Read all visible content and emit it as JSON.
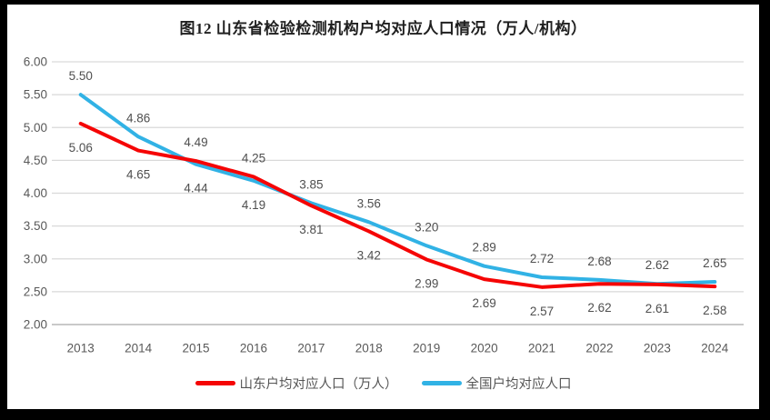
{
  "chart_data": {
    "type": "line",
    "title": "图12 山东省检验检测机构户均对应人口情况（万人/机构）",
    "categories": [
      "2013",
      "2014",
      "2015",
      "2016",
      "2017",
      "2018",
      "2019",
      "2020",
      "2021",
      "2022",
      "2023",
      "2024"
    ],
    "series": [
      {
        "name": "山东户均对应人口（万人）",
        "color": "#f50505",
        "values": [
          5.06,
          4.65,
          4.49,
          4.25,
          3.81,
          3.42,
          2.99,
          2.69,
          2.57,
          2.62,
          2.61,
          2.58
        ]
      },
      {
        "name": "全国户均对应人口",
        "color": "#31b2e5",
        "values": [
          5.5,
          4.86,
          4.44,
          4.19,
          3.85,
          3.56,
          3.2,
          2.89,
          2.72,
          2.68,
          2.62,
          2.65
        ]
      }
    ],
    "ylim": [
      2.0,
      6.0
    ],
    "ytick_step": 0.5,
    "ytick_labels": [
      "6.00",
      "5.50",
      "5.00",
      "4.50",
      "4.00",
      "3.50",
      "3.00",
      "2.50",
      "2.00"
    ],
    "grid": true,
    "data_labels": true,
    "legend_position": "bottom"
  },
  "styles": {
    "frame_color": "#000000",
    "background_color": "#ffffff",
    "title_color": "#1f1f1f",
    "grid_color": "#d9d9d9",
    "axis_line_color": "#b7b7b7",
    "axis_label_color": "#595959",
    "data_label_color": "#4f4f4f",
    "legend_text_color": "#555555"
  }
}
